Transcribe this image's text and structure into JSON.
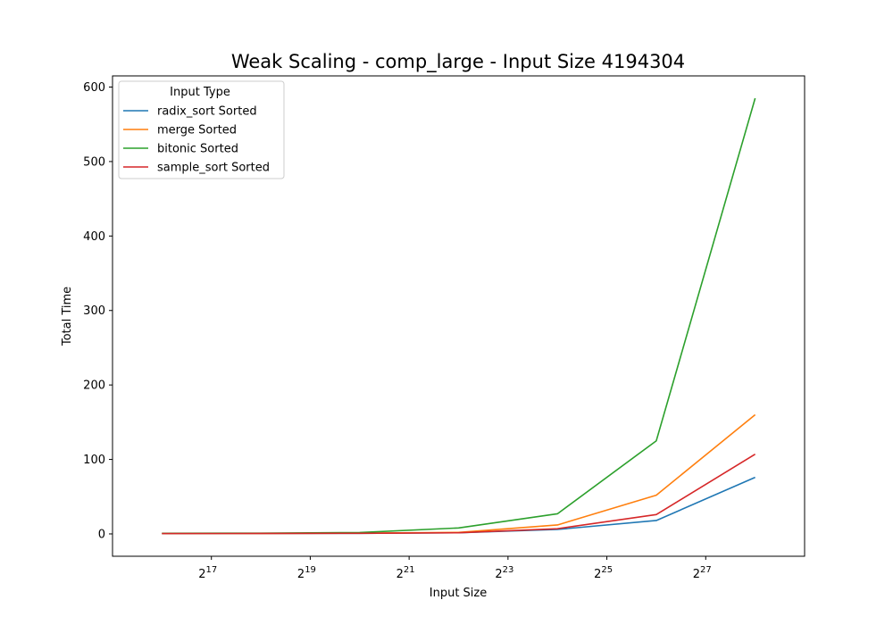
{
  "chart_data": {
    "type": "line",
    "title": "Weak Scaling - comp_large - Input Size 4194304",
    "xlabel": "Input Size",
    "ylabel": "Total Time",
    "x_scale": "log2",
    "x": [
      65536,
      262144,
      1048576,
      4194304,
      16777216,
      67108864,
      268435456
    ],
    "xlim": [
      32768,
      536870912
    ],
    "ylim": [
      -30,
      615
    ],
    "x_ticks": [
      {
        "value": 131072,
        "base": "2",
        "exp": "17"
      },
      {
        "value": 524288,
        "base": "2",
        "exp": "19"
      },
      {
        "value": 2097152,
        "base": "2",
        "exp": "21"
      },
      {
        "value": 8388608,
        "base": "2",
        "exp": "23"
      },
      {
        "value": 33554432,
        "base": "2",
        "exp": "25"
      },
      {
        "value": 134217728,
        "base": "2",
        "exp": "27"
      }
    ],
    "y_ticks": [
      0,
      100,
      200,
      300,
      400,
      500,
      600
    ],
    "legend": {
      "title": "Input Type",
      "position": "upper-left"
    },
    "series": [
      {
        "name": "radix_sort Sorted",
        "color": "#1f77b4",
        "values": [
          0.5,
          0.6,
          0.8,
          1.5,
          6,
          18,
          76
        ]
      },
      {
        "name": "merge Sorted",
        "color": "#ff7f0e",
        "values": [
          0.6,
          0.7,
          1.0,
          2.0,
          12,
          52,
          160
        ]
      },
      {
        "name": "bitonic Sorted",
        "color": "#2ca02c",
        "values": [
          0.8,
          1.0,
          1.8,
          8,
          27,
          125,
          585
        ]
      },
      {
        "name": "sample_sort Sorted",
        "color": "#d62728",
        "values": [
          0.5,
          0.6,
          0.8,
          1.5,
          7,
          26,
          107
        ]
      }
    ],
    "grid": false
  }
}
